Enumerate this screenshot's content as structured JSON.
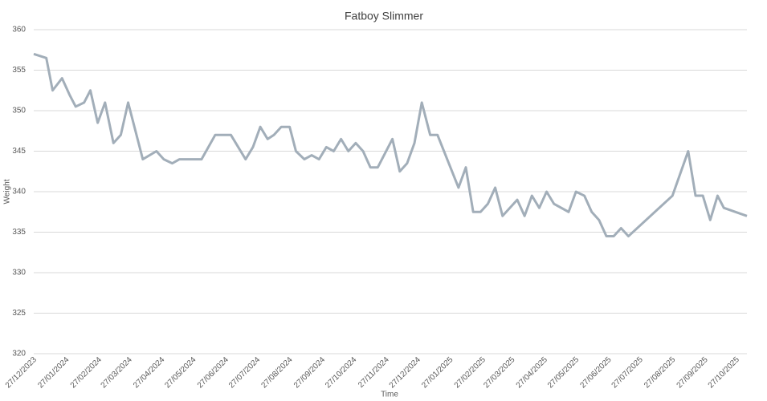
{
  "chart_data": {
    "type": "line",
    "title": "Fatboy Slimmer",
    "x_label": "Time",
    "y_label": "Weight",
    "x": [
      "27/12/2023",
      "08/01/2024",
      "14/01/2024",
      "23/01/2024",
      "30/01/2024",
      "05/02/2024",
      "13/02/2024",
      "19/02/2024",
      "26/02/2024",
      "04/03/2024",
      "12/03/2024",
      "19/03/2024",
      "26/03/2024",
      "09/04/2024",
      "22/04/2024",
      "29/04/2024",
      "07/05/2024",
      "14/05/2024",
      "04/06/2024",
      "17/06/2024",
      "02/07/2024",
      "16/07/2024",
      "23/07/2024",
      "30/07/2024",
      "06/08/2024",
      "12/08/2024",
      "19/08/2024",
      "27/08/2024",
      "02/09/2024",
      "10/09/2024",
      "17/09/2024",
      "24/09/2024",
      "01/10/2024",
      "08/10/2024",
      "15/10/2024",
      "22/10/2024",
      "29/10/2024",
      "05/11/2024",
      "12/11/2024",
      "19/11/2024",
      "03/12/2024",
      "10/12/2024",
      "17/12/2024",
      "24/12/2024",
      "31/12/2024",
      "08/01/2025",
      "15/01/2025",
      "04/02/2025",
      "11/02/2025",
      "18/02/2025",
      "25/02/2025",
      "04/03/2025",
      "11/03/2025",
      "18/03/2025",
      "01/04/2025",
      "08/04/2025",
      "15/04/2025",
      "22/04/2025",
      "29/04/2025",
      "06/05/2025",
      "20/05/2025",
      "27/05/2025",
      "04/06/2025",
      "11/06/2025",
      "18/06/2025",
      "25/06/2025",
      "02/07/2025",
      "09/07/2025",
      "16/07/2025",
      "27/08/2025",
      "11/09/2025",
      "18/09/2025",
      "25/09/2025",
      "02/10/2025",
      "09/10/2025",
      "15/10/2025",
      "06/11/2025"
    ],
    "series": [
      {
        "name": "Weight",
        "color": "#a2aeb9",
        "values": [
          357,
          356.5,
          352.5,
          354,
          352,
          350.5,
          351,
          352.5,
          348.5,
          351,
          346,
          347,
          351,
          344,
          345,
          344,
          343.5,
          344,
          344,
          347,
          347,
          344,
          345.5,
          348,
          346.5,
          347,
          348,
          348,
          345,
          344,
          344.5,
          344,
          345.5,
          345,
          346.5,
          345,
          346,
          345,
          343,
          343,
          346.5,
          342.5,
          343.5,
          346,
          351,
          347,
          347,
          340.5,
          343,
          337.5,
          337.5,
          338.5,
          340.5,
          337,
          339,
          337,
          339.5,
          338,
          340,
          338.5,
          337.5,
          340,
          339.5,
          337.5,
          336.5,
          334.5,
          334.5,
          335.5,
          334.5,
          339.5,
          345,
          339.5,
          339.5,
          336.5,
          339.5,
          338,
          337
        ]
      }
    ],
    "xlim": [
      "27/12/2023",
      "06/11/2025"
    ],
    "xticks": [
      "27/12/2023",
      "27/01/2024",
      "27/02/2024",
      "27/03/2024",
      "27/04/2024",
      "27/05/2024",
      "27/06/2024",
      "27/07/2024",
      "27/08/2024",
      "27/09/2024",
      "27/10/2024",
      "27/11/2024",
      "27/12/2024",
      "27/01/2025",
      "27/02/2025",
      "27/03/2025",
      "27/04/2025",
      "27/05/2025",
      "27/06/2025",
      "27/07/2025",
      "27/08/2025",
      "27/09/2025",
      "27/10/2025"
    ],
    "ylim": [
      320,
      360
    ],
    "yticks": [
      320,
      325,
      330,
      335,
      340,
      345,
      350,
      355,
      360
    ],
    "grid": true
  }
}
